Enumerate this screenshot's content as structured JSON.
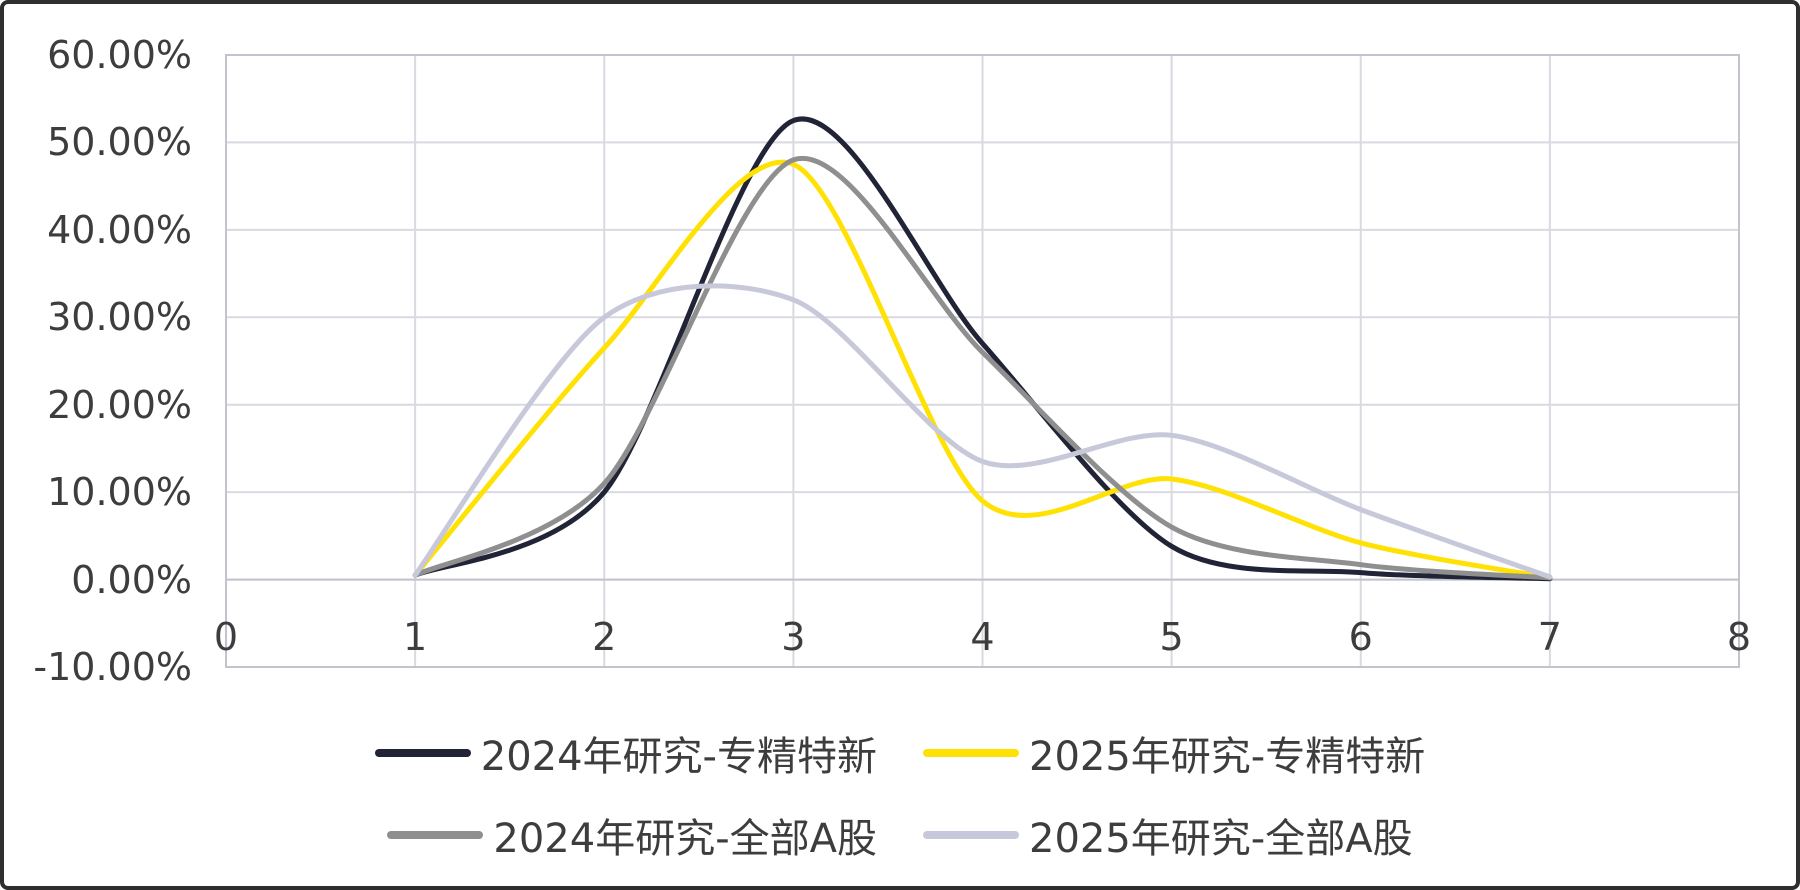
{
  "chart_data": {
    "type": "line",
    "smooth": true,
    "title": "",
    "xlabel": "",
    "ylabel": "",
    "x": [
      1,
      2,
      3,
      4,
      5,
      6,
      7
    ],
    "series": [
      {
        "name": "2024年研究-专精特新",
        "color": "#212437",
        "values": [
          0.5,
          10.0,
          52.5,
          27.0,
          3.8,
          0.8,
          0.1
        ]
      },
      {
        "name": "2025年研究-专精特新",
        "color": "#ffe104",
        "values": [
          0.5,
          26.5,
          47.5,
          9.0,
          11.5,
          4.2,
          0.2
        ]
      },
      {
        "name": "2024年研究-全部A股",
        "color": "#8f8f8f",
        "values": [
          0.5,
          11.0,
          48.0,
          26.0,
          6.0,
          1.7,
          0.2
        ]
      },
      {
        "name": "2025年研究-全部A股",
        "color": "#c7c8da",
        "values": [
          0.5,
          30.0,
          32.0,
          13.5,
          16.5,
          8.0,
          0.3
        ]
      }
    ],
    "xlim": [
      0,
      8
    ],
    "ylim": [
      -10,
      60
    ],
    "grid": true,
    "legend_position": "bottom",
    "legend_columns": 2,
    "yticks": [
      {
        "value": 60,
        "label": "60.00%"
      },
      {
        "value": 50,
        "label": "50.00%"
      },
      {
        "value": 40,
        "label": "40.00%"
      },
      {
        "value": 30,
        "label": "30.00%"
      },
      {
        "value": 20,
        "label": "20.00%"
      },
      {
        "value": 10,
        "label": "10.00%"
      },
      {
        "value": 0,
        "label": "0.00%"
      },
      {
        "value": -10,
        "label": "-10.00%"
      }
    ],
    "xticks": [
      {
        "value": 0,
        "label": "0"
      },
      {
        "value": 1,
        "label": "1"
      },
      {
        "value": 2,
        "label": "2"
      },
      {
        "value": 3,
        "label": "3"
      },
      {
        "value": 4,
        "label": "4"
      },
      {
        "value": 5,
        "label": "5"
      },
      {
        "value": 6,
        "label": "6"
      },
      {
        "value": 7,
        "label": "7"
      },
      {
        "value": 8,
        "label": "8"
      }
    ],
    "colors": {
      "background": "#ffffff",
      "frame": "#2e2e2e",
      "gridline": "#d9d9e1",
      "axis_line": "#c3c3cd",
      "text": "#3d3d3d"
    }
  }
}
